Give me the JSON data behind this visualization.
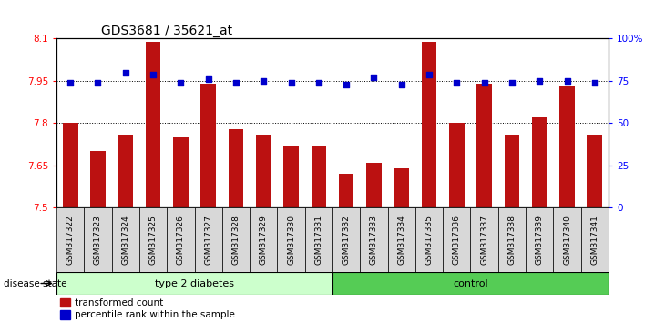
{
  "title": "GDS3681 / 35621_at",
  "samples": [
    "GSM317322",
    "GSM317323",
    "GSM317324",
    "GSM317325",
    "GSM317326",
    "GSM317327",
    "GSM317328",
    "GSM317329",
    "GSM317330",
    "GSM317331",
    "GSM317332",
    "GSM317333",
    "GSM317334",
    "GSM317335",
    "GSM317336",
    "GSM317337",
    "GSM317338",
    "GSM317339",
    "GSM317340",
    "GSM317341"
  ],
  "bar_values": [
    7.8,
    7.7,
    7.76,
    8.09,
    7.75,
    7.94,
    7.78,
    7.76,
    7.72,
    7.72,
    7.62,
    7.66,
    7.64,
    8.09,
    7.8,
    7.94,
    7.76,
    7.82,
    7.93,
    7.76
  ],
  "percentile_values_pct": [
    74,
    74,
    80,
    79,
    74,
    76,
    74,
    75,
    74,
    74,
    73,
    77,
    73,
    79,
    74,
    74,
    74,
    75,
    75,
    74
  ],
  "ylim_left": [
    7.5,
    8.1
  ],
  "ylim_right": [
    0,
    100
  ],
  "yticks_left": [
    7.5,
    7.65,
    7.8,
    7.95,
    8.1
  ],
  "yticks_right": [
    0,
    25,
    50,
    75,
    100
  ],
  "ytick_labels_left": [
    "7.5",
    "7.65",
    "7.8",
    "7.95",
    "8.1"
  ],
  "ytick_labels_right": [
    "0",
    "25",
    "50",
    "75",
    "100%"
  ],
  "bar_color": "#bb1111",
  "percentile_color": "#0000cc",
  "grid_color": "#000000",
  "type2_diabetes_count": 10,
  "control_count": 10,
  "group1_label": "type 2 diabetes",
  "group2_label": "control",
  "group1_color": "#ccffcc",
  "group2_color": "#55cc55",
  "xlabel_group": "disease state",
  "legend_bar_label": "transformed count",
  "legend_pct_label": "percentile rank within the sample",
  "bar_width": 0.55,
  "title_fontsize": 10,
  "tick_label_fontsize": 7.5,
  "sample_label_fontsize": 6.5
}
